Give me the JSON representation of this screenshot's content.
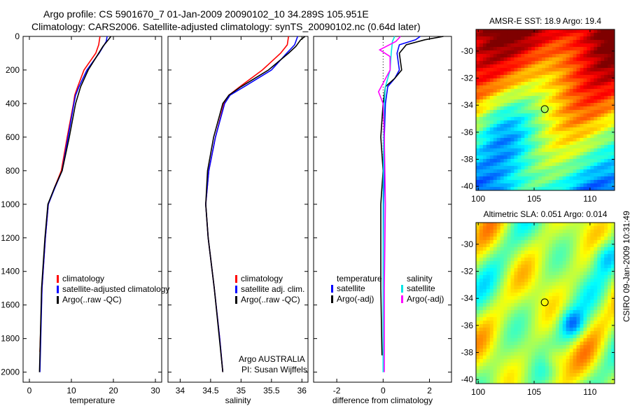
{
  "title_line1": "Argo profile: CS 5901670_7 01-Jan-2009 20090102_10 34.289S 105.951E",
  "title_line2": "Climatology: CARS2006. Satellite-adjusted climatology: synTS_20090102.nc (0.64d later)",
  "side_label": "CSIRO 09-Jan-2009 10:31:49",
  "colors": {
    "climatology": "#ff0000",
    "satellite": "#0000ff",
    "argo": "#000000",
    "sal_satellite": "#00e5e5",
    "sal_argo": "#ff00ff"
  },
  "chart_data": [
    {
      "type": "line",
      "xlabel": "temperature",
      "ylabel": "",
      "xlim": [
        -1.5,
        31.5
      ],
      "ylim": [
        2060,
        0
      ],
      "xticks": [
        "0",
        "10",
        "20",
        "30"
      ],
      "yticks": [
        "0",
        "200",
        "400",
        "600",
        "800",
        "1000",
        "1200",
        "1400",
        "1600",
        "1800",
        "2000"
      ],
      "legend": [
        "climatology",
        "satellite-adjusted climatology",
        "Argo(..raw -QC)"
      ],
      "series": [
        {
          "name": "climatology",
          "color": "#ff0000",
          "depth": [
            0,
            50,
            100,
            200,
            300,
            350,
            400,
            600,
            800,
            900,
            1000,
            1200,
            1500,
            1880
          ],
          "values": [
            16.8,
            16.5,
            15.8,
            13,
            11.5,
            10.8,
            10.5,
            9,
            7.6,
            6,
            4.5,
            3.8,
            3,
            2.5
          ]
        },
        {
          "name": "satellite-adjusted climatology",
          "color": "#0000ff",
          "depth": [
            0,
            30,
            100,
            200,
            300,
            350,
            400,
            600,
            800,
            900,
            1000,
            1200,
            1500,
            2000
          ],
          "values": [
            18.5,
            18.3,
            16.6,
            13.7,
            11.8,
            11,
            10.6,
            9.2,
            7.8,
            6.1,
            4.5,
            3.8,
            3,
            2.5
          ]
        },
        {
          "name": "Argo(..raw -QC)",
          "color": "#000000",
          "depth": [
            0,
            20,
            60,
            120,
            200,
            300,
            400,
            600,
            800,
            900,
            1000,
            1200,
            1500,
            2000
          ],
          "values": [
            19.4,
            18.8,
            17.5,
            16,
            14,
            12.2,
            11,
            9.5,
            7.8,
            6,
            4.4,
            3.7,
            2.9,
            2.4
          ]
        }
      ]
    },
    {
      "type": "line",
      "xlabel": "salinity",
      "xlim": [
        33.8,
        36.1
      ],
      "ylim": [
        2060,
        0
      ],
      "xticks": [
        "34",
        "34.5",
        "35",
        "35.5",
        "36"
      ],
      "legend": [
        "climatology",
        "satellite adj. clim.",
        "Argo(..raw -QC)"
      ],
      "annotation": [
        "Argo AUSTRALIA",
        "PI: Susan Wijffels"
      ],
      "series": [
        {
          "name": "climatology",
          "color": "#ff0000",
          "depth": [
            0,
            50,
            100,
            200,
            300,
            350,
            400,
            600,
            800,
            1000,
            1200,
            1500,
            1800,
            2000
          ],
          "values": [
            35.78,
            35.76,
            35.65,
            35.35,
            34.98,
            34.8,
            34.72,
            34.58,
            34.47,
            34.42,
            34.46,
            34.56,
            34.65,
            34.7
          ]
        },
        {
          "name": "satellite adj. clim.",
          "color": "#0000ff",
          "depth": [
            0,
            50,
            100,
            200,
            300,
            350,
            400,
            600,
            800,
            1000,
            1200,
            1500,
            1800,
            2000
          ],
          "values": [
            35.93,
            35.88,
            35.75,
            35.5,
            35.05,
            34.82,
            34.73,
            34.58,
            34.47,
            34.42,
            34.46,
            34.56,
            34.65,
            34.7
          ]
        },
        {
          "name": "Argo(..raw -QC)",
          "color": "#000000",
          "depth": [
            0,
            20,
            60,
            100,
            200,
            300,
            350,
            400,
            600,
            800,
            1000,
            1200,
            1500,
            2000
          ],
          "values": [
            36.05,
            35.98,
            35.9,
            35.78,
            35.45,
            35.0,
            34.8,
            34.7,
            34.55,
            34.45,
            34.42,
            34.46,
            34.56,
            34.7
          ]
        }
      ]
    },
    {
      "type": "line",
      "xlabel": "difference from climatology",
      "xlim": [
        -3,
        2.95
      ],
      "ylim": [
        2060,
        0
      ],
      "xticks": [
        "-2",
        "0",
        "2"
      ],
      "legend_temperature": {
        "title": "temperature",
        "items": [
          "satellite",
          "Argo(-adj)"
        ]
      },
      "legend_salinity": {
        "title": "salinity",
        "items": [
          "satellite",
          "Argo(-adj)"
        ]
      },
      "series": [
        {
          "name": "temperature satellite",
          "color": "#0000ff",
          "depth": [
            0,
            20,
            50,
            100,
            200,
            250,
            300,
            400,
            600,
            800,
            1000,
            1500,
            2000
          ],
          "values": [
            1.6,
            1.4,
            0.7,
            0.6,
            0.7,
            0.5,
            0.2,
            0.1,
            0.05,
            0.05,
            0.02,
            0,
            0
          ]
        },
        {
          "name": "temperature Argo(-adj)",
          "color": "#000000",
          "depth": [
            0,
            20,
            50,
            100,
            200,
            250,
            300,
            400,
            600,
            800,
            1000,
            1200,
            1500,
            1900
          ],
          "values": [
            2.6,
            1.8,
            1.0,
            0.7,
            0.8,
            0.5,
            0.1,
            0,
            -0.1,
            0,
            -0.1,
            -0.1,
            -0.1,
            -0.05
          ]
        },
        {
          "name": "salinity satellite",
          "color": "#00e5e5",
          "depth": [
            0,
            30,
            100,
            200,
            300,
            400,
            600,
            1000,
            1500,
            2000
          ],
          "values": [
            0.5,
            0.4,
            0.35,
            0.3,
            0.1,
            0.05,
            0.02,
            0,
            0,
            0
          ]
        },
        {
          "name": "salinity Argo(-adj)",
          "color": "#ff00ff",
          "depth": [
            0,
            30,
            80,
            120,
            200,
            330,
            400,
            600,
            1000,
            1500,
            2000
          ],
          "values": [
            0.75,
            0.55,
            -0.15,
            0.3,
            0.3,
            -0.2,
            0,
            0.05,
            0.1,
            0.05,
            0.05
          ]
        }
      ]
    },
    {
      "type": "heatmap",
      "title": "AMSR-E SST: 18.9 Argo: 19.4",
      "xlim": [
        99.8,
        112.2
      ],
      "ylim": [
        -28.4,
        -40.3
      ],
      "xticks": [
        "100",
        "105",
        "110"
      ],
      "yticks": [
        "-30",
        "-32",
        "-34",
        "-36",
        "-38",
        "-40"
      ],
      "marker": {
        "lon": 105.95,
        "lat": -34.29
      }
    },
    {
      "type": "heatmap",
      "title": "Altimetric SLA: 0.051 Argo: 0.014",
      "xlim": [
        99.8,
        112.2
      ],
      "ylim": [
        -28.4,
        -40.3
      ],
      "xticks": [
        "100",
        "105",
        "110"
      ],
      "yticks": [
        "-30",
        "-32",
        "-34",
        "-36",
        "-38",
        "-40"
      ],
      "marker": {
        "lon": 105.95,
        "lat": -34.29
      }
    }
  ]
}
